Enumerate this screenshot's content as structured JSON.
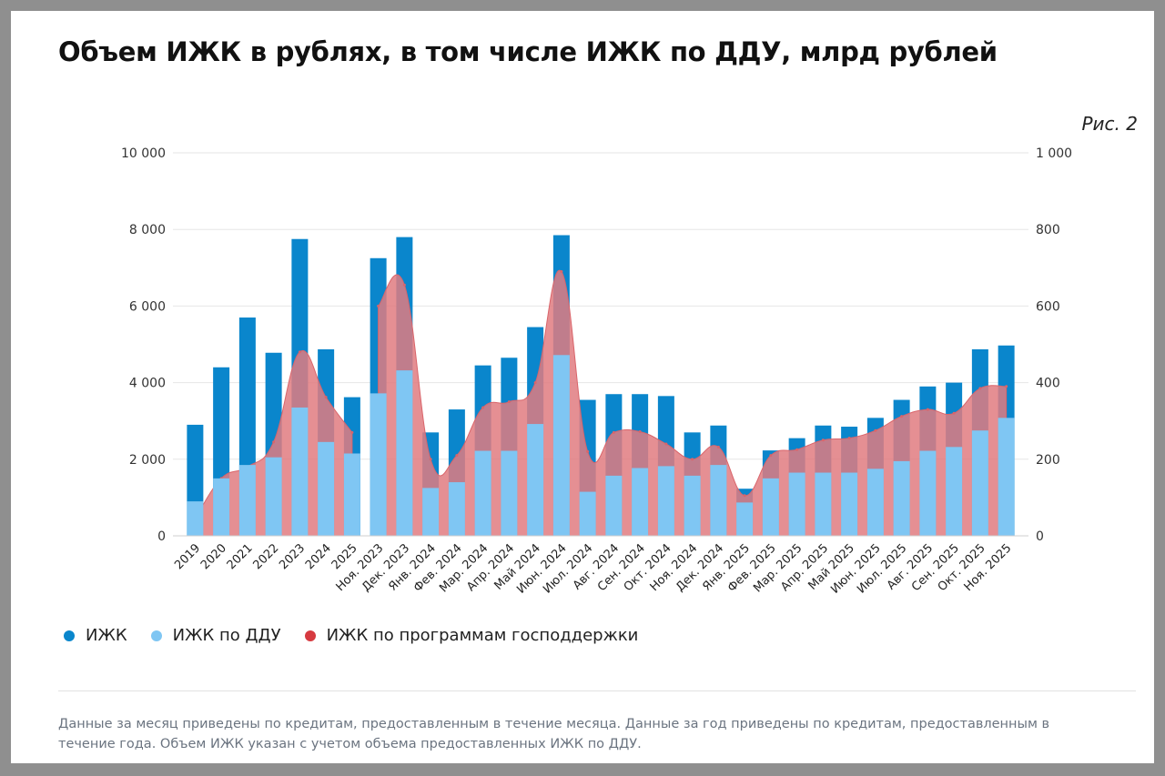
{
  "title": "Объем ИЖК в рублях, в том числе ИЖК по ДДУ, млрд рублей",
  "figure_label": "Рис. 2",
  "note": "Данные за месяц приведены по кредитам, предоставленным в течение месяца. Данные за год приведены по кредитам, предоставленным в течение года. Объем ИЖК указан с учетом объема предоставленных ИЖК по ДДУ.",
  "colors": {
    "izhk": "#0a86cc",
    "izhk_ddu": "#7fc6f3",
    "gov": "#e07b80",
    "gov_dot": "#d63a40",
    "grid": "#e6e6e6"
  },
  "chart_data": {
    "type": "bar",
    "categories": [
      "2019",
      "2020",
      "2021",
      "2022",
      "2023",
      "2024",
      "2025",
      "Ноя. 2023",
      "Дек. 2023",
      "Янв. 2024",
      "Фев. 2024",
      "Мар. 2024",
      "Апр. 2024",
      "Май 2024",
      "Июн. 2024",
      "Июл. 2024",
      "Авг. 2024",
      "Сен. 2024",
      "Окт. 2024",
      "Ноя. 2024",
      "Дек. 2024",
      "Янв. 2025",
      "Фев. 2025",
      "Мар. 2025",
      "Апр. 2025",
      "Май 2025",
      "Июн. 2025",
      "Июл. 2025",
      "Авг. 2025",
      "Сен. 2025",
      "Окт. 2025",
      "Ноя. 2025"
    ],
    "left_axis": {
      "ylim": [
        0,
        10000
      ],
      "ticks": [
        "0",
        "2 000",
        "4 000",
        "6 000",
        "8 000",
        "10 000"
      ]
    },
    "right_axis": {
      "ylim": [
        0,
        1000
      ],
      "ticks": [
        "0",
        "200",
        "400",
        "600",
        "800",
        "1 000"
      ]
    },
    "grid": true,
    "legend_position": "bottom-left",
    "series": [
      {
        "name": "ИЖК",
        "axis": "left",
        "kind": "bar",
        "values": [
          2900,
          4400,
          5700,
          4780,
          7750,
          4870,
          3620,
          null,
          null,
          null,
          null,
          null,
          null,
          null,
          null,
          null,
          null,
          null,
          null,
          null,
          null,
          null,
          null,
          null,
          null,
          null,
          null,
          null,
          null,
          null,
          null,
          null
        ]
      },
      {
        "name": "ИЖК",
        "axis": "right",
        "kind": "bar",
        "values": [
          null,
          null,
          null,
          null,
          null,
          null,
          null,
          725,
          780,
          270,
          330,
          445,
          465,
          545,
          785,
          355,
          370,
          370,
          365,
          270,
          288,
          123,
          223,
          255,
          288,
          285,
          308,
          355,
          390,
          400,
          487,
          497
        ]
      },
      {
        "name": "ИЖК по ДДУ",
        "axis": "left",
        "kind": "bar",
        "values": [
          900,
          1500,
          1850,
          2050,
          3350,
          2450,
          2150,
          null,
          null,
          null,
          null,
          null,
          null,
          null,
          null,
          null,
          null,
          null,
          null,
          null,
          null,
          null,
          null,
          null,
          null,
          null,
          null,
          null,
          null,
          null,
          null,
          null
        ]
      },
      {
        "name": "ИЖК по ДДУ",
        "axis": "right",
        "kind": "bar",
        "values": [
          null,
          null,
          null,
          null,
          null,
          null,
          null,
          372,
          432,
          125,
          140,
          222,
          222,
          292,
          472,
          115,
          157,
          177,
          182,
          157,
          185,
          87,
          150,
          165,
          165,
          165,
          175,
          195,
          222,
          232,
          275,
          308
        ]
      },
      {
        "name": "ИЖК по программам господдержки",
        "axis": "left",
        "kind": "area",
        "values": [
          450,
          1500,
          1800,
          2450,
          4800,
          3620,
          2700,
          null,
          null,
          null,
          null,
          null,
          null,
          null,
          null,
          null,
          null,
          null,
          null,
          null,
          null,
          null,
          null,
          null,
          null,
          null,
          null,
          null,
          null,
          null,
          null,
          null
        ]
      },
      {
        "name": "ИЖК по программам господдержки",
        "axis": "right",
        "kind": "area",
        "values": [
          null,
          null,
          null,
          null,
          null,
          null,
          null,
          600,
          655,
          200,
          210,
          335,
          350,
          400,
          690,
          220,
          270,
          272,
          240,
          200,
          232,
          105,
          210,
          225,
          250,
          255,
          275,
          312,
          330,
          320,
          385,
          390
        ]
      }
    ],
    "legend": [
      "ИЖК",
      "ИЖК по ДДУ",
      "ИЖК по программам господдержки"
    ]
  }
}
